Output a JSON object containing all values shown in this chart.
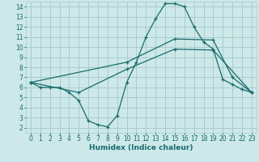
{
  "title": "",
  "xlabel": "Humidex (Indice chaleur)",
  "xlim": [
    -0.5,
    23.5
  ],
  "ylim": [
    1.5,
    14.5
  ],
  "xticks": [
    0,
    1,
    2,
    3,
    4,
    5,
    6,
    7,
    8,
    9,
    10,
    11,
    12,
    13,
    14,
    15,
    16,
    17,
    18,
    19,
    20,
    21,
    22,
    23
  ],
  "yticks": [
    2,
    3,
    4,
    5,
    6,
    7,
    8,
    9,
    10,
    11,
    12,
    13,
    14
  ],
  "bg_color": "#cce8e8",
  "grid_color": "#aacccc",
  "line_color": "#1a6b6b",
  "line1_x": [
    0,
    1,
    2,
    3,
    4,
    5,
    6,
    7,
    8,
    9,
    10,
    11,
    12,
    13,
    14,
    15,
    16,
    17,
    18,
    19,
    20,
    21,
    22,
    23
  ],
  "line1_y": [
    6.5,
    6.0,
    6.0,
    6.0,
    5.5,
    4.7,
    2.7,
    2.3,
    2.1,
    3.2,
    6.5,
    8.5,
    11.0,
    12.8,
    14.3,
    14.3,
    14.0,
    12.0,
    10.5,
    9.8,
    6.8,
    6.3,
    5.8,
    5.5
  ],
  "line2_x": [
    0,
    10,
    15,
    19,
    21,
    23
  ],
  "line2_y": [
    6.5,
    8.5,
    10.8,
    10.7,
    7.0,
    5.5
  ],
  "line3_x": [
    0,
    5,
    10,
    15,
    19,
    23
  ],
  "line3_y": [
    6.5,
    5.5,
    7.8,
    9.8,
    9.7,
    5.5
  ]
}
